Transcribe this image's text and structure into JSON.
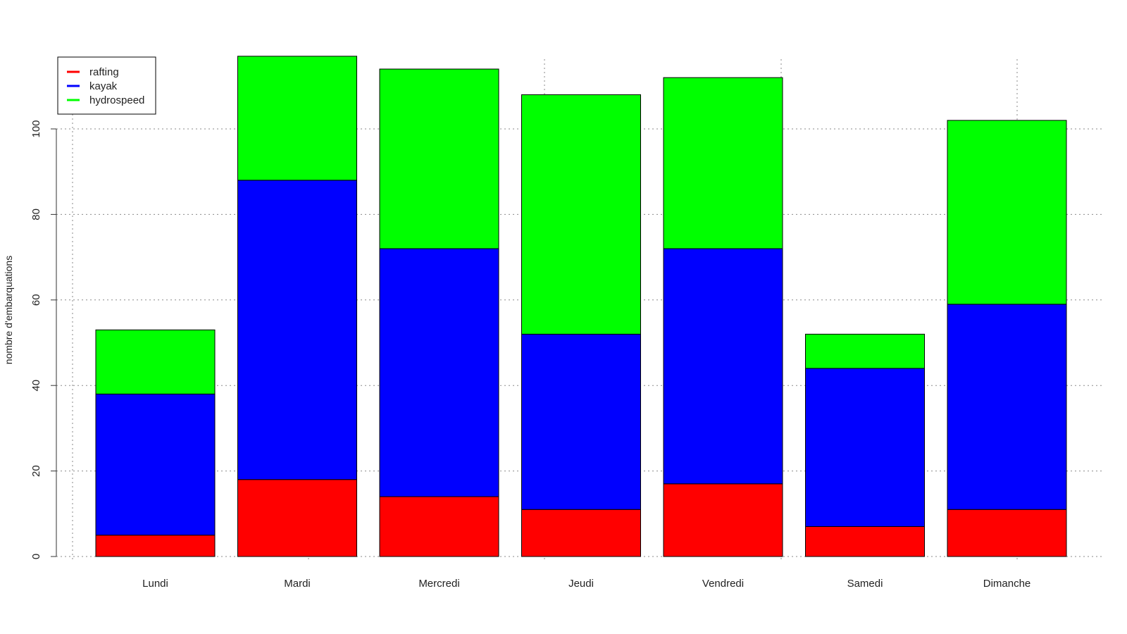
{
  "chart_data": {
    "type": "bar",
    "stacked": true,
    "title": "",
    "xlabel": "",
    "ylabel": "nombre d'embarquations",
    "ylim": [
      0,
      117
    ],
    "yticks": [
      0,
      20,
      40,
      60,
      80,
      100
    ],
    "grid": true,
    "legend_position": "top-left",
    "categories": [
      "Lundi",
      "Mardi",
      "Mercredi",
      "Jeudi",
      "Vendredi",
      "Samedi",
      "Dimanche"
    ],
    "series": [
      {
        "name": "rafting",
        "color": "#ff0000",
        "values": [
          5,
          18,
          14,
          11,
          17,
          7,
          11
        ]
      },
      {
        "name": "kayak",
        "color": "#0000ff",
        "values": [
          33,
          70,
          58,
          41,
          55,
          37,
          48
        ]
      },
      {
        "name": "hydrospeed",
        "color": "#00ff00",
        "values": [
          15,
          29,
          42,
          56,
          40,
          8,
          43
        ]
      }
    ]
  }
}
